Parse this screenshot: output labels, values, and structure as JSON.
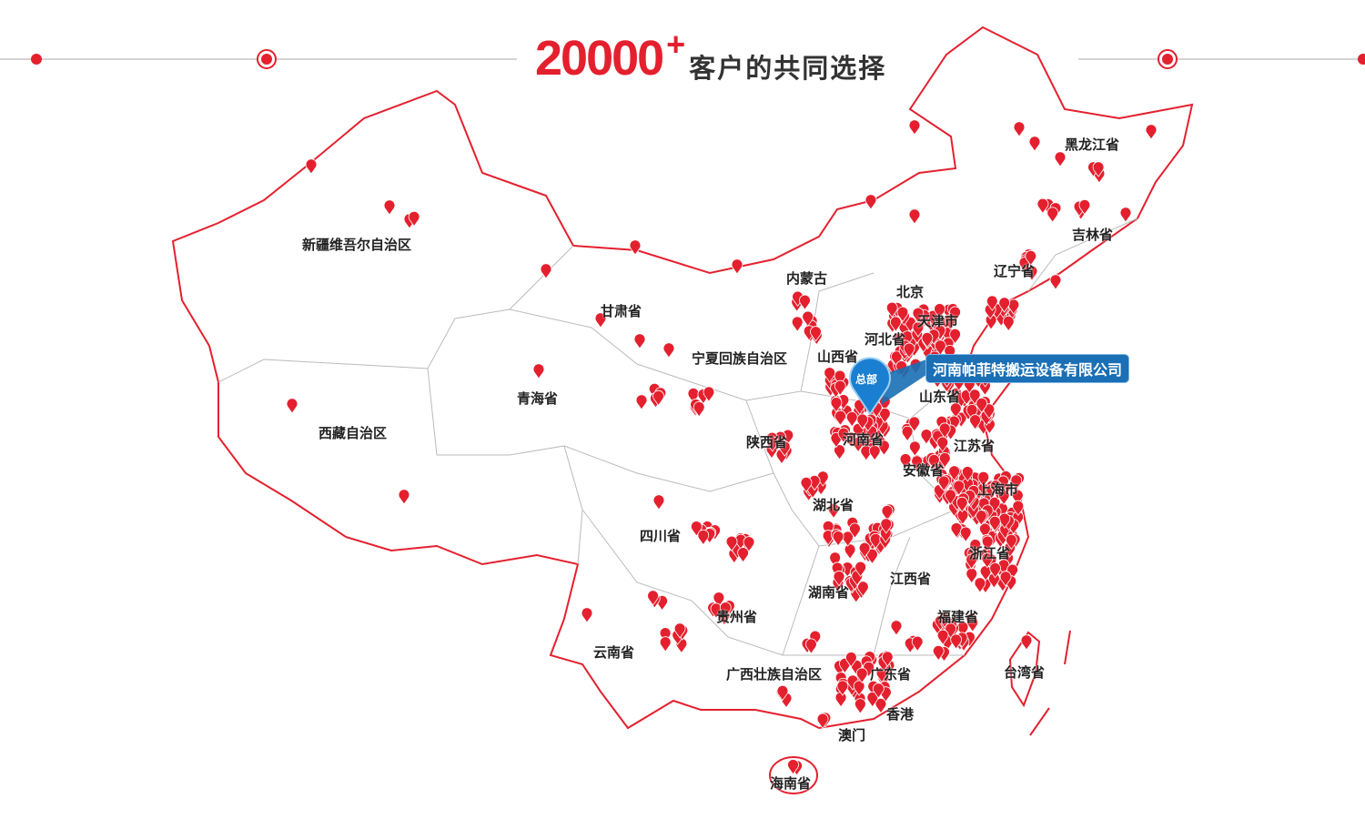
{
  "header": {
    "count": "20000",
    "plus": "+",
    "subtitle": "客户的共同选择"
  },
  "colors": {
    "accent": "#e4202e",
    "hq": "#1a6fb5",
    "border": "#e4202e",
    "province_border": "#bbbbbb"
  },
  "headquarters": {
    "pin_label": "总部",
    "company": "河南帕菲特搬运设备有限公司",
    "icon": "map-pin-icon"
  },
  "provinces": [
    "新疆维吾尔自治区",
    "西藏自治区",
    "青海省",
    "甘肃省",
    "内蒙古",
    "宁夏回族自治区",
    "山西省",
    "北京",
    "天津市",
    "河北省",
    "黑龙江省",
    "吉林省",
    "辽宁省",
    "山东省",
    "河南省",
    "陕西省",
    "江苏省",
    "安徽省",
    "上海市",
    "湖北省",
    "四川省",
    "浙江省",
    "江西省",
    "湖南省",
    "贵州省",
    "福建省",
    "云南省",
    "广西壮族自治区",
    "广东省",
    "台湾省",
    "香港",
    "澳门",
    "海南省"
  ],
  "marker_icon": "customer-pin-icon"
}
